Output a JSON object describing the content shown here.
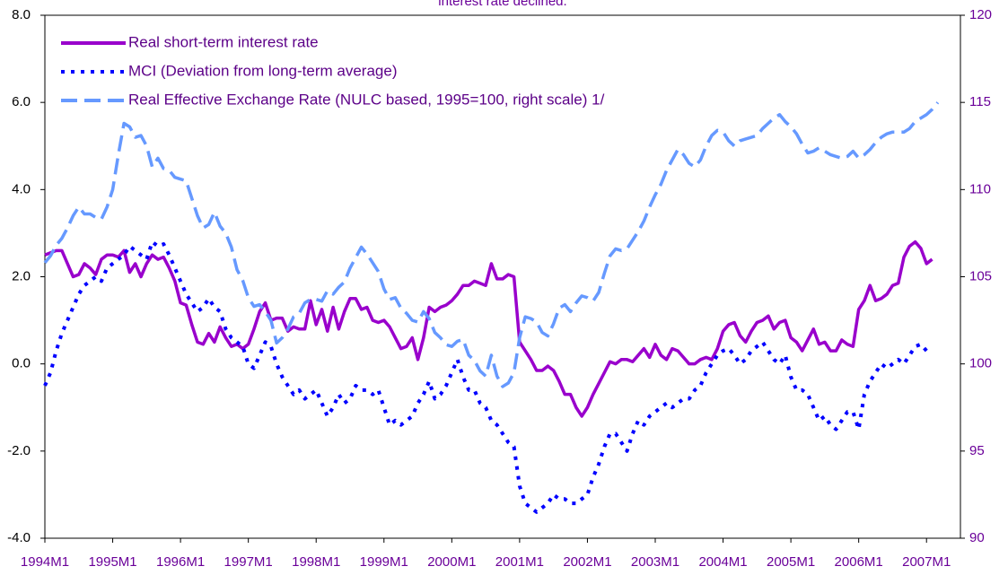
{
  "chart_data": {
    "type": "line",
    "title": "interest rate declined.",
    "categories": [
      "1994M1",
      null,
      null,
      null,
      null,
      null,
      null,
      null,
      null,
      null,
      null,
      null,
      "1995M1",
      null,
      null,
      null,
      null,
      null,
      null,
      null,
      null,
      null,
      null,
      null,
      "1996M1",
      null,
      null,
      null,
      null,
      null,
      null,
      null,
      null,
      null,
      null,
      null,
      "1997M1",
      null,
      null,
      null,
      null,
      null,
      null,
      null,
      null,
      null,
      null,
      null,
      "1998M1",
      null,
      null,
      null,
      null,
      null,
      null,
      null,
      null,
      null,
      null,
      null,
      "1999M1",
      null,
      null,
      null,
      null,
      null,
      null,
      null,
      null,
      null,
      null,
      null,
      "2000M1",
      null,
      null,
      null,
      null,
      null,
      null,
      null,
      null,
      null,
      null,
      null,
      "2001M1",
      null,
      null,
      null,
      null,
      null,
      null,
      null,
      null,
      null,
      null,
      null,
      "2002M1",
      null,
      null,
      null,
      null,
      null,
      null,
      null,
      null,
      null,
      null,
      null,
      "2003M1",
      null,
      null,
      null,
      null,
      null,
      null,
      null,
      null,
      null,
      null,
      null,
      "2004M1",
      null,
      null,
      null,
      null,
      null,
      null,
      null,
      null,
      null,
      null,
      null,
      "2005M1",
      null,
      null,
      null,
      null,
      null,
      null,
      null,
      null,
      null,
      null,
      null,
      "2006M1",
      null,
      null,
      null,
      null,
      null,
      null,
      null,
      null,
      null,
      null,
      null,
      "2007M1",
      null,
      null,
      null,
      null,
      null,
      null
    ],
    "series": [
      {
        "name": "Real short-term interest rate",
        "color": "#9900cc",
        "dash": "solid",
        "values": [
          2.5,
          2.55,
          2.6,
          2.6,
          2.3,
          2.0,
          2.05,
          2.3,
          2.2,
          2.05,
          2.4,
          2.5,
          2.5,
          2.45,
          2.6,
          2.1,
          2.3,
          2.0,
          2.3,
          2.5,
          2.4,
          2.45,
          2.2,
          1.9,
          1.4,
          1.35,
          0.9,
          0.5,
          0.45,
          0.7,
          0.5,
          0.85,
          0.6,
          0.4,
          0.45,
          0.35,
          0.45,
          0.8,
          1.2,
          1.4,
          1.0,
          1.05,
          1.05,
          0.75,
          0.85,
          0.8,
          0.8,
          1.45,
          0.9,
          1.25,
          0.75,
          1.3,
          0.8,
          1.2,
          1.5,
          1.5,
          1.25,
          1.3,
          1.0,
          0.95,
          1.0,
          0.85,
          0.6,
          0.35,
          0.4,
          0.6,
          0.1,
          0.6,
          1.3,
          1.2,
          1.3,
          1.35,
          1.45,
          1.6,
          1.8,
          1.8,
          1.9,
          1.85,
          1.8,
          2.3,
          1.95,
          1.95,
          2.05,
          2.0,
          0.5,
          0.3,
          0.1,
          -0.15,
          -0.15,
          -0.05,
          -0.15,
          -0.4,
          -0.7,
          -0.7,
          -1.0,
          -1.2,
          -1.0,
          -0.7,
          -0.45,
          -0.2,
          0.05,
          0.0,
          0.1,
          0.1,
          0.05,
          0.2,
          0.35,
          0.15,
          0.45,
          0.2,
          0.1,
          0.35,
          0.3,
          0.15,
          0.0,
          0.0,
          0.1,
          0.15,
          0.1,
          0.35,
          0.75,
          0.9,
          0.95,
          0.65,
          0.5,
          0.75,
          0.95,
          1.0,
          1.1,
          0.8,
          0.95,
          1.0,
          0.6,
          0.5,
          0.3,
          0.55,
          0.8,
          0.45,
          0.5,
          0.3,
          0.3,
          0.55,
          0.45,
          0.4,
          1.25,
          1.45,
          1.8,
          1.45,
          1.5,
          1.6,
          1.8,
          1.85,
          2.45,
          2.7,
          2.8,
          2.65,
          2.3,
          2.4,
          null,
          null,
          null,
          null,
          null
        ]
      },
      {
        "name": "MCI (Deviation from long-term average)",
        "color": "#0000ff",
        "dash": "dot",
        "values": [
          -0.5,
          -0.2,
          0.3,
          0.7,
          1.0,
          1.3,
          1.6,
          1.8,
          1.9,
          2.0,
          1.9,
          2.2,
          2.3,
          2.4,
          2.5,
          2.7,
          2.6,
          2.5,
          2.4,
          2.8,
          2.7,
          2.75,
          2.5,
          2.2,
          1.9,
          1.6,
          1.4,
          1.2,
          1.3,
          1.5,
          1.3,
          1.2,
          0.8,
          0.6,
          0.5,
          0.4,
          0.0,
          -0.1,
          0.2,
          0.5,
          0.4,
          0.0,
          -0.3,
          -0.5,
          -0.7,
          -0.6,
          -0.8,
          -0.7,
          -0.6,
          -0.9,
          -1.2,
          -1.0,
          -0.7,
          -0.9,
          -0.8,
          -0.5,
          -0.6,
          -0.6,
          -0.7,
          -0.6,
          -1.0,
          -1.4,
          -1.3,
          -1.4,
          -1.3,
          -1.2,
          -0.9,
          -0.7,
          -0.4,
          -0.8,
          -0.7,
          -0.5,
          -0.2,
          0.1,
          -0.3,
          -0.6,
          -0.6,
          -0.9,
          -1.0,
          -1.3,
          -1.4,
          -1.6,
          -1.8,
          -1.9,
          -2.8,
          -3.2,
          -3.3,
          -3.4,
          -3.3,
          -3.2,
          -3.0,
          -3.1,
          -3.1,
          -3.2,
          -3.2,
          -3.1,
          -3.0,
          -2.6,
          -2.3,
          -1.9,
          -1.6,
          -1.6,
          -1.8,
          -2.0,
          -1.6,
          -1.3,
          -1.4,
          -1.2,
          -1.1,
          -1.0,
          -0.9,
          -1.0,
          -0.9,
          -0.8,
          -0.8,
          -0.6,
          -0.5,
          -0.2,
          0.0,
          0.2,
          0.3,
          0.35,
          0.2,
          0.0,
          0.1,
          0.3,
          0.4,
          0.5,
          0.3,
          0.1,
          0.0,
          0.2,
          -0.3,
          -0.6,
          -0.6,
          -0.7,
          -1.0,
          -1.3,
          -1.2,
          -1.4,
          -1.5,
          -1.3,
          -1.1,
          -1.1,
          -1.5,
          -0.7,
          -0.4,
          -0.2,
          0.0,
          -0.1,
          0.0,
          0.1,
          0.0,
          0.2,
          0.4,
          0.45,
          0.3,
          null,
          null,
          null,
          null,
          null,
          null
        ]
      },
      {
        "name": "Real Effective Exchange Rate (NULC based, 1995=100, right scale) 1/",
        "color": "#6699ff",
        "dash": "dash",
        "axis": "y2",
        "values": [
          105.8,
          106.2,
          106.8,
          107.2,
          107.8,
          108.5,
          109,
          108.6,
          108.6,
          108.4,
          108.3,
          109,
          110,
          112,
          113.8,
          113.6,
          113,
          113.1,
          112.5,
          111.3,
          111.8,
          111.2,
          111.1,
          110.7,
          110.6,
          110.5,
          109.5,
          108.5,
          107.8,
          108,
          108.7,
          107.9,
          107.5,
          106.7,
          105.4,
          104.8,
          103.8,
          103.3,
          103.4,
          103,
          102.5,
          101.2,
          101.5,
          102,
          102.7,
          102.9,
          103.5,
          103.7,
          103.7,
          103.6,
          104.2,
          104,
          104.4,
          104.7,
          105.5,
          106.1,
          106.7,
          106.3,
          105.8,
          105.3,
          104.3,
          103.7,
          103.8,
          103.2,
          102.9,
          102.5,
          102.4,
          103,
          102.6,
          101.8,
          101.5,
          101.1,
          101.0,
          101.3,
          101.4,
          100.5,
          100.2,
          99.6,
          99.3,
          100.5,
          99.3,
          98.7,
          98.9,
          99.5,
          101.5,
          102.7,
          102.6,
          102.4,
          101.8,
          101.6,
          102.3,
          103.2,
          103.4,
          103.0,
          103.5,
          103.9,
          103.8,
          103.6,
          104.1,
          105.2,
          106.2,
          106.6,
          106.5,
          106.6,
          107.1,
          107.6,
          108.2,
          109.0,
          109.7,
          110.3,
          111.1,
          111.7,
          112.3,
          112.0,
          111.5,
          111.3,
          111.7,
          112.5,
          113.1,
          113.4,
          113.3,
          112.8,
          112.5,
          112.8,
          112.9,
          113.0,
          113.1,
          113.5,
          113.8,
          114.1,
          114.3,
          113.9,
          113.6,
          113.2,
          112.6,
          112.1,
          112.2,
          112.4,
          112.2,
          112.0,
          111.9,
          111.8,
          111.9,
          112.2,
          111.8,
          112.0,
          112.3,
          112.7,
          113.0,
          113.2,
          113.3,
          113.3,
          113.3,
          113.5,
          113.9,
          114.1,
          114.3,
          114.6,
          115.0,
          null,
          null,
          null,
          null
        ]
      }
    ],
    "ylim": [
      -4,
      8
    ],
    "yticks": [
      {
        "value": -4,
        "label": "-4.0"
      },
      {
        "value": -2,
        "label": "-2.0"
      },
      {
        "value": 0,
        "label": "0.0"
      },
      {
        "value": 2,
        "label": "2.0"
      },
      {
        "value": 4,
        "label": "4.0"
      },
      {
        "value": 6,
        "label": "6.0"
      },
      {
        "value": 8,
        "label": "8.0"
      }
    ],
    "y2lim": [
      90,
      120
    ],
    "y2ticks": [
      90,
      95,
      100,
      105,
      110,
      115,
      120
    ],
    "legend": "top-left"
  }
}
